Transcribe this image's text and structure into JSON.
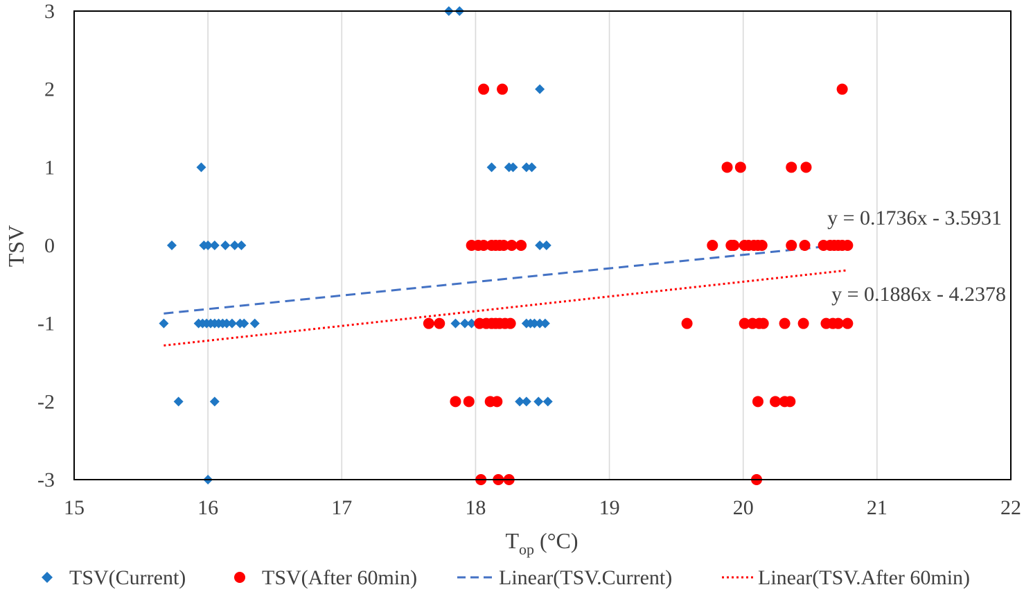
{
  "chart_data": {
    "type": "scatter",
    "title": "",
    "xlabel": "T",
    "xlabel_sub": "op",
    "xlabel_unit": " (°C)",
    "ylabel": "TSV",
    "xlim": [
      15,
      22
    ],
    "ylim": [
      -3,
      3
    ],
    "x_ticks": [
      15,
      16,
      17,
      18,
      19,
      20,
      21,
      22
    ],
    "y_ticks": [
      3,
      2,
      1,
      0,
      -1,
      -2,
      -3
    ],
    "grid": "vertical",
    "legend_position": "bottom",
    "colors": {
      "current": "#1f77c4",
      "after": "#ff0000",
      "axis": "#000000",
      "grid": "#d9d9d9",
      "text": "#404040"
    },
    "series": [
      {
        "name": "TSV(Current)",
        "marker": "diamond",
        "points": [
          [
            17.8,
            3
          ],
          [
            17.88,
            3
          ],
          [
            18.48,
            2
          ],
          [
            15.95,
            1
          ],
          [
            18.12,
            1
          ],
          [
            18.25,
            1
          ],
          [
            18.28,
            1
          ],
          [
            18.38,
            1
          ],
          [
            18.42,
            1
          ],
          [
            15.73,
            0
          ],
          [
            15.97,
            0
          ],
          [
            16.0,
            0
          ],
          [
            16.05,
            0
          ],
          [
            16.13,
            0
          ],
          [
            16.2,
            0
          ],
          [
            16.25,
            0
          ],
          [
            18.48,
            0
          ],
          [
            18.53,
            0
          ],
          [
            15.67,
            -1
          ],
          [
            15.93,
            -1
          ],
          [
            15.96,
            -1
          ],
          [
            15.99,
            -1
          ],
          [
            16.02,
            -1
          ],
          [
            16.05,
            -1
          ],
          [
            16.08,
            -1
          ],
          [
            16.11,
            -1
          ],
          [
            16.14,
            -1
          ],
          [
            16.18,
            -1
          ],
          [
            16.24,
            -1
          ],
          [
            16.27,
            -1
          ],
          [
            16.35,
            -1
          ],
          [
            17.85,
            -1
          ],
          [
            17.92,
            -1
          ],
          [
            17.97,
            -1
          ],
          [
            18.38,
            -1
          ],
          [
            18.41,
            -1
          ],
          [
            18.44,
            -1
          ],
          [
            18.48,
            -1
          ],
          [
            18.52,
            -1
          ],
          [
            15.78,
            -2
          ],
          [
            16.05,
            -2
          ],
          [
            18.33,
            -2
          ],
          [
            18.38,
            -2
          ],
          [
            18.47,
            -2
          ],
          [
            18.54,
            -2
          ],
          [
            16.0,
            -3
          ]
        ]
      },
      {
        "name": "TSV(After 60min)",
        "marker": "circle",
        "points": [
          [
            18.06,
            2
          ],
          [
            18.2,
            2
          ],
          [
            20.74,
            2
          ],
          [
            19.88,
            1
          ],
          [
            19.98,
            1
          ],
          [
            20.36,
            1
          ],
          [
            20.47,
            1
          ],
          [
            17.97,
            0
          ],
          [
            18.02,
            0
          ],
          [
            18.06,
            0
          ],
          [
            18.12,
            0
          ],
          [
            18.15,
            0
          ],
          [
            18.18,
            0
          ],
          [
            18.21,
            0
          ],
          [
            18.27,
            0
          ],
          [
            18.34,
            0
          ],
          [
            19.77,
            0
          ],
          [
            19.91,
            0
          ],
          [
            19.93,
            0
          ],
          [
            20.01,
            0
          ],
          [
            20.04,
            0
          ],
          [
            20.08,
            0
          ],
          [
            20.11,
            0
          ],
          [
            20.14,
            0
          ],
          [
            20.36,
            0
          ],
          [
            20.46,
            0
          ],
          [
            20.6,
            0
          ],
          [
            20.65,
            0
          ],
          [
            20.68,
            0
          ],
          [
            20.71,
            0
          ],
          [
            20.74,
            0
          ],
          [
            20.78,
            0
          ],
          [
            17.65,
            -1
          ],
          [
            17.73,
            -1
          ],
          [
            18.03,
            -1
          ],
          [
            18.08,
            -1
          ],
          [
            18.12,
            -1
          ],
          [
            18.15,
            -1
          ],
          [
            18.18,
            -1
          ],
          [
            18.22,
            -1
          ],
          [
            18.26,
            -1
          ],
          [
            19.58,
            -1
          ],
          [
            20.01,
            -1
          ],
          [
            20.07,
            -1
          ],
          [
            20.12,
            -1
          ],
          [
            20.15,
            -1
          ],
          [
            20.31,
            -1
          ],
          [
            20.45,
            -1
          ],
          [
            20.62,
            -1
          ],
          [
            20.67,
            -1
          ],
          [
            20.71,
            -1
          ],
          [
            20.78,
            -1
          ],
          [
            17.85,
            -2
          ],
          [
            17.95,
            -2
          ],
          [
            18.11,
            -2
          ],
          [
            18.16,
            -2
          ],
          [
            20.11,
            -2
          ],
          [
            20.24,
            -2
          ],
          [
            20.31,
            -2
          ],
          [
            20.35,
            -2
          ],
          [
            18.04,
            -3
          ],
          [
            18.17,
            -3
          ],
          [
            18.25,
            -3
          ],
          [
            20.1,
            -3
          ]
        ]
      }
    ],
    "trendlines": [
      {
        "name": "Linear(TSV.Current)",
        "series": "TSV(Current)",
        "slope": 0.1736,
        "intercept": -3.5931,
        "x_range": [
          15.67,
          20.78
        ],
        "style": "dashed",
        "equation": "y = 0.1736x - 3.5931"
      },
      {
        "name": "Linear(TSV.After 60min)",
        "series": "TSV(After 60min)",
        "slope": 0.1886,
        "intercept": -4.2378,
        "x_range": [
          15.67,
          20.78
        ],
        "style": "dotted",
        "equation": "y = 0.1886x - 4.2378"
      }
    ],
    "legend": [
      "TSV(Current)",
      "TSV(After 60min)",
      "Linear(TSV.Current)",
      "Linear(TSV.After 60min)"
    ]
  }
}
